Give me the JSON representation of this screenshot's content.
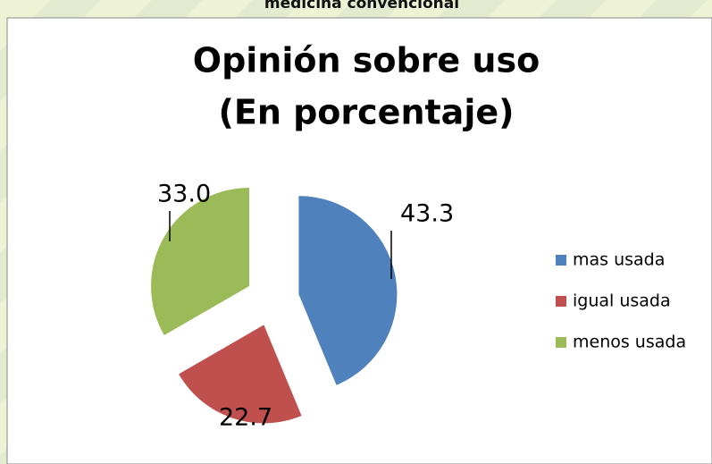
{
  "heading": "medicina convencional",
  "chart_data": {
    "type": "pie",
    "title": [
      "Opinión sobre uso",
      "(En porcentaje)"
    ],
    "categories": [
      "mas usada",
      "igual usada",
      "menos usada"
    ],
    "values": [
      43.3,
      22.7,
      33.0
    ],
    "value_labels": [
      "43.3",
      "22.7",
      "33.0"
    ],
    "colors": [
      "#4f81bd",
      "#c0504d",
      "#9bbb59"
    ],
    "legend": "right"
  }
}
